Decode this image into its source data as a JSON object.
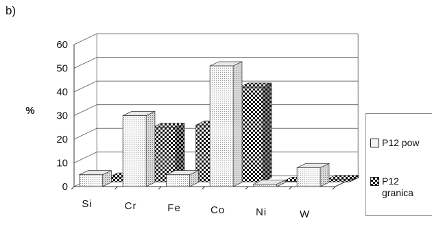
{
  "panel_label": "b)",
  "chart_data": {
    "type": "bar",
    "subtype": "3d-clustered",
    "categories": [
      "Si",
      "Cr",
      "Fe",
      "Co",
      "Ni",
      "W"
    ],
    "series": [
      {
        "name": "P12 pow",
        "values": [
          5,
          30,
          5,
          51,
          1,
          8
        ],
        "pattern": "dotted"
      },
      {
        "name": "P12 granica",
        "values": [
          2,
          23,
          24,
          40,
          0,
          1
        ],
        "pattern": "checkered"
      }
    ],
    "ylabel": "%",
    "ylim": [
      0,
      60
    ],
    "yticks": [
      "0",
      "10",
      "20",
      "30",
      "40",
      "50",
      "60"
    ],
    "grid": true,
    "legend": "right"
  },
  "legend": {
    "items": [
      {
        "label_lines": [
          "P12 pow"
        ]
      },
      {
        "label_lines": [
          "P12",
          "granica"
        ]
      }
    ]
  }
}
